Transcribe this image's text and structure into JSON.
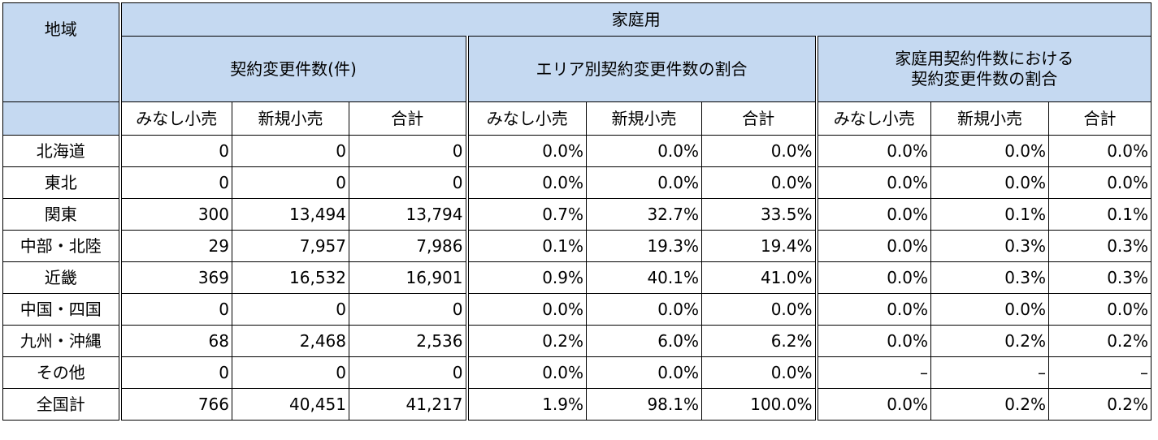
{
  "header": {
    "region_label": "地域",
    "group_label": "家庭用",
    "sections": [
      "契約変更件数(件)",
      "エリア別契約変更件数の割合",
      "家庭用契約件数における\n契約変更件数の割合"
    ],
    "subcolumns": [
      "みなし小売",
      "新規小売",
      "合計"
    ]
  },
  "rows": [
    {
      "region": "北海道",
      "cells": [
        "0",
        "0",
        "0",
        "0.0%",
        "0.0%",
        "0.0%",
        "0.0%",
        "0.0%",
        "0.0%"
      ]
    },
    {
      "region": "東北",
      "cells": [
        "0",
        "0",
        "0",
        "0.0%",
        "0.0%",
        "0.0%",
        "0.0%",
        "0.0%",
        "0.0%"
      ]
    },
    {
      "region": "関東",
      "cells": [
        "300",
        "13,494",
        "13,794",
        "0.7%",
        "32.7%",
        "33.5%",
        "0.0%",
        "0.1%",
        "0.1%"
      ]
    },
    {
      "region": "中部・北陸",
      "cells": [
        "29",
        "7,957",
        "7,986",
        "0.1%",
        "19.3%",
        "19.4%",
        "0.0%",
        "0.3%",
        "0.3%"
      ]
    },
    {
      "region": "近畿",
      "cells": [
        "369",
        "16,532",
        "16,901",
        "0.9%",
        "40.1%",
        "41.0%",
        "0.0%",
        "0.3%",
        "0.3%"
      ]
    },
    {
      "region": "中国・四国",
      "cells": [
        "0",
        "0",
        "0",
        "0.0%",
        "0.0%",
        "0.0%",
        "0.0%",
        "0.0%",
        "0.0%"
      ]
    },
    {
      "region": "九州・沖縄",
      "cells": [
        "68",
        "2,468",
        "2,536",
        "0.2%",
        "6.0%",
        "6.2%",
        "0.0%",
        "0.2%",
        "0.2%"
      ]
    },
    {
      "region": "その他",
      "cells": [
        "0",
        "0",
        "0",
        "0.0%",
        "0.0%",
        "0.0%",
        "–",
        "–",
        "–"
      ]
    },
    {
      "region": "全国計",
      "cells": [
        "766",
        "40,451",
        "41,217",
        "1.9%",
        "98.1%",
        "100.0%",
        "0.0%",
        "0.2%",
        "0.2%"
      ]
    }
  ],
  "colors": {
    "header_fill": "#c5d9f1",
    "border": "#000000"
  }
}
